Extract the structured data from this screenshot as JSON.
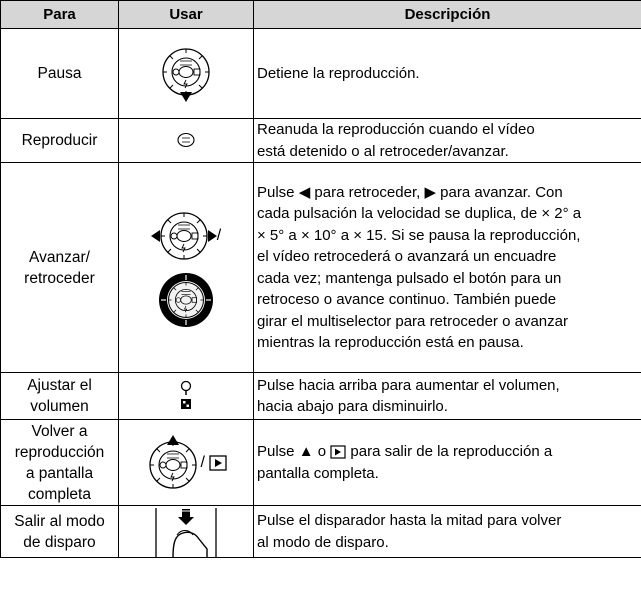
{
  "header": {
    "para": "Para",
    "usar": "Usar",
    "descripcion": "Descripción"
  },
  "rows": [
    {
      "para": [
        "Pausa"
      ],
      "desc": [
        "Detiene la reproducción."
      ]
    },
    {
      "para": [
        "Reproducir"
      ],
      "desc": [
        "Reanuda la reproducción cuando el vídeo",
        "está detenido o al retroceder/avanzar."
      ]
    },
    {
      "para": [
        "Avanzar/",
        "retroceder"
      ],
      "usar_separator": "/",
      "desc": [
        "Pulse ◀ para retroceder, ▶ para avanzar. Con",
        "cada pulsación la velocidad se duplica, de × 2° a",
        "× 5° a × 10° a × 15. Si se pausa la reproducción,",
        "el vídeo retrocederá o avanzará un encuadre",
        "cada vez; mantenga pulsado el botón para un",
        "retroceso o avance continuo. También puede",
        "girar el multiselector para retroceder o avanzar",
        "mientras la reproducción está en pausa."
      ]
    },
    {
      "para": [
        "Ajustar el",
        "volumen"
      ],
      "desc": [
        "Pulse hacia arriba para aumentar el volumen,",
        "hacia abajo para disminuirlo."
      ]
    },
    {
      "para": [
        "Volver a",
        "reproducción",
        "a pantalla",
        "completa"
      ],
      "usar_separator": "/",
      "desc": [
        [
          "Pulse ▲ o",
          "para salir de la reproducción a"
        ],
        "pantalla completa."
      ]
    },
    {
      "para": [
        "Salir al modo",
        "de disparo"
      ],
      "desc": [
        "Pulse el disparador hasta la mitad para volver",
        "al modo de disparo."
      ]
    }
  ]
}
